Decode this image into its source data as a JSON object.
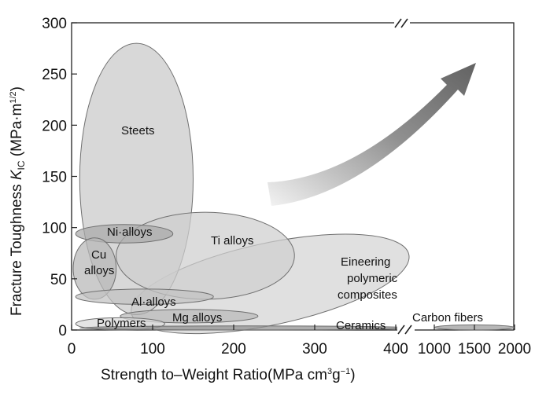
{
  "chart_data": {
    "type": "scatter",
    "title": "",
    "xlabel": "Strength to–Weight Ratio(MPa cm³g⁻¹)",
    "ylabel": "Fracture Toughness K_IC (MPa·m¹ᐟ²)",
    "ylabel_parts": {
      "main": "Fracture Toughness ",
      "symbol": "K",
      "subscript": "IC",
      "unit": " (MPa·m",
      "exponent": "1/2",
      "close": ")"
    },
    "xlabel_parts": {
      "main": "Strength to–Weight Ratio(MPa cm",
      "exp1": "3",
      "mid": "g",
      "exp2": "−1",
      "close": ")"
    },
    "ylim": [
      0,
      300
    ],
    "y_ticks": [
      "0",
      "50",
      "100",
      "150",
      "200",
      "250",
      "300"
    ],
    "x_ticks_linear": [
      "0",
      "100",
      "200",
      "300",
      "400"
    ],
    "x_ticks_break": [
      "1000",
      "1500",
      "2000"
    ],
    "x_axis_break": {
      "from": 420,
      "to": 1000
    },
    "regions": [
      {
        "name": "Steets",
        "x": [
          10,
          150
        ],
        "y": [
          15,
          280
        ]
      },
      {
        "name": "Ni·alloys",
        "x": [
          5,
          125
        ],
        "y": [
          85,
          103
        ]
      },
      {
        "name": "Cu alloys",
        "x": [
          2,
          55
        ],
        "y": [
          30,
          90
        ]
      },
      {
        "name": "Ti alloys",
        "x": [
          55,
          275
        ],
        "y": [
          30,
          115
        ]
      },
      {
        "name": "Al·alloys",
        "x": [
          5,
          175
        ],
        "y": [
          25,
          40
        ]
      },
      {
        "name": "Mg alloys",
        "x": [
          60,
          230
        ],
        "y": [
          7,
          20
        ]
      },
      {
        "name": "Polymers",
        "x": [
          5,
          115
        ],
        "y": [
          0,
          12
        ]
      },
      {
        "name": "Eineering polymeric composites",
        "x": [
          70,
          420
        ],
        "y": [
          5,
          85
        ]
      },
      {
        "name": "Ceramics",
        "x": [
          10,
          420
        ],
        "y": [
          0,
          4
        ]
      },
      {
        "name": "Carbon fibers",
        "x": [
          1000,
          2000
        ],
        "y": [
          0,
          5
        ]
      }
    ],
    "annotations": [
      "Direction of improving performance (arrow)"
    ]
  }
}
